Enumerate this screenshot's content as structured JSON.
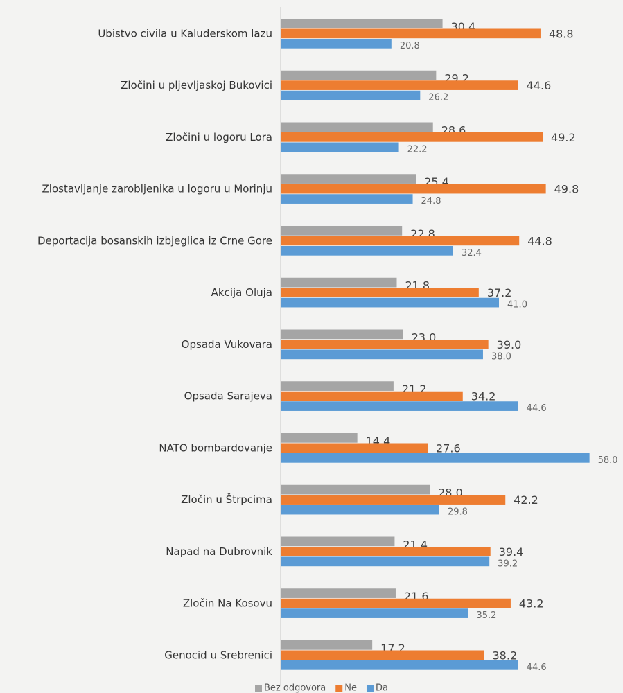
{
  "chart_data": {
    "type": "hbar",
    "categories": [
      "Ubistvo civila u Kaluđerskom lazu",
      "Zločini u pljevljaskoj Bukovici",
      "Zločini u logoru Lora",
      "Zlostavljanje zarobljenika u logoru u Morinju",
      "Deportacija bosanskih izbjeglica iz Crne Gore",
      "Akcija Oluja",
      "Opsada Vukovara",
      "Opsada Sarajeva",
      "NATO bombardovanje",
      "Zločin u Štrpcima",
      "Napad na Dubrovnik",
      "Zločin Na Kosovu",
      "Genocid u Srebrenici"
    ],
    "series": [
      {
        "name": "Bez odgovora",
        "color": "#a5a5a5",
        "values": [
          30.4,
          29.2,
          28.6,
          25.4,
          22.8,
          21.8,
          23.0,
          21.2,
          14.4,
          28.0,
          21.4,
          21.6,
          17.2
        ],
        "value_labels": [
          "30.4",
          "29.2",
          "28.6",
          "25.4",
          "22.8",
          "21.8",
          "23.0",
          "21.2",
          "14.4",
          "28.0",
          "21.4",
          "21.6",
          "17.2"
        ]
      },
      {
        "name": "Ne",
        "color": "#ed7d31",
        "values": [
          48.8,
          44.6,
          49.2,
          49.8,
          44.8,
          37.2,
          39.0,
          34.2,
          27.6,
          42.2,
          39.4,
          43.2,
          38.2
        ],
        "value_labels": [
          "48.8",
          "44.6",
          "49.2",
          "49.8",
          "44.8",
          "37.2",
          "39.0",
          "34.2",
          "27.6",
          "42.2",
          "39.4",
          "43.2",
          "38.2"
        ]
      },
      {
        "name": "Da",
        "color": "#5b9bd5",
        "values": [
          20.8,
          26.2,
          22.2,
          24.8,
          32.4,
          41.0,
          38.0,
          44.6,
          58.0,
          29.8,
          39.2,
          35.2,
          44.6
        ],
        "value_labels": [
          "20.8",
          "26.2",
          "22.2",
          "24.8",
          "32.4",
          "41.0",
          "38.0",
          "44.6",
          "58.0",
          "29.8",
          "39.2",
          "35.2",
          "44.6"
        ]
      }
    ],
    "xlim": [
      0,
      60
    ],
    "legend": "bottom"
  }
}
